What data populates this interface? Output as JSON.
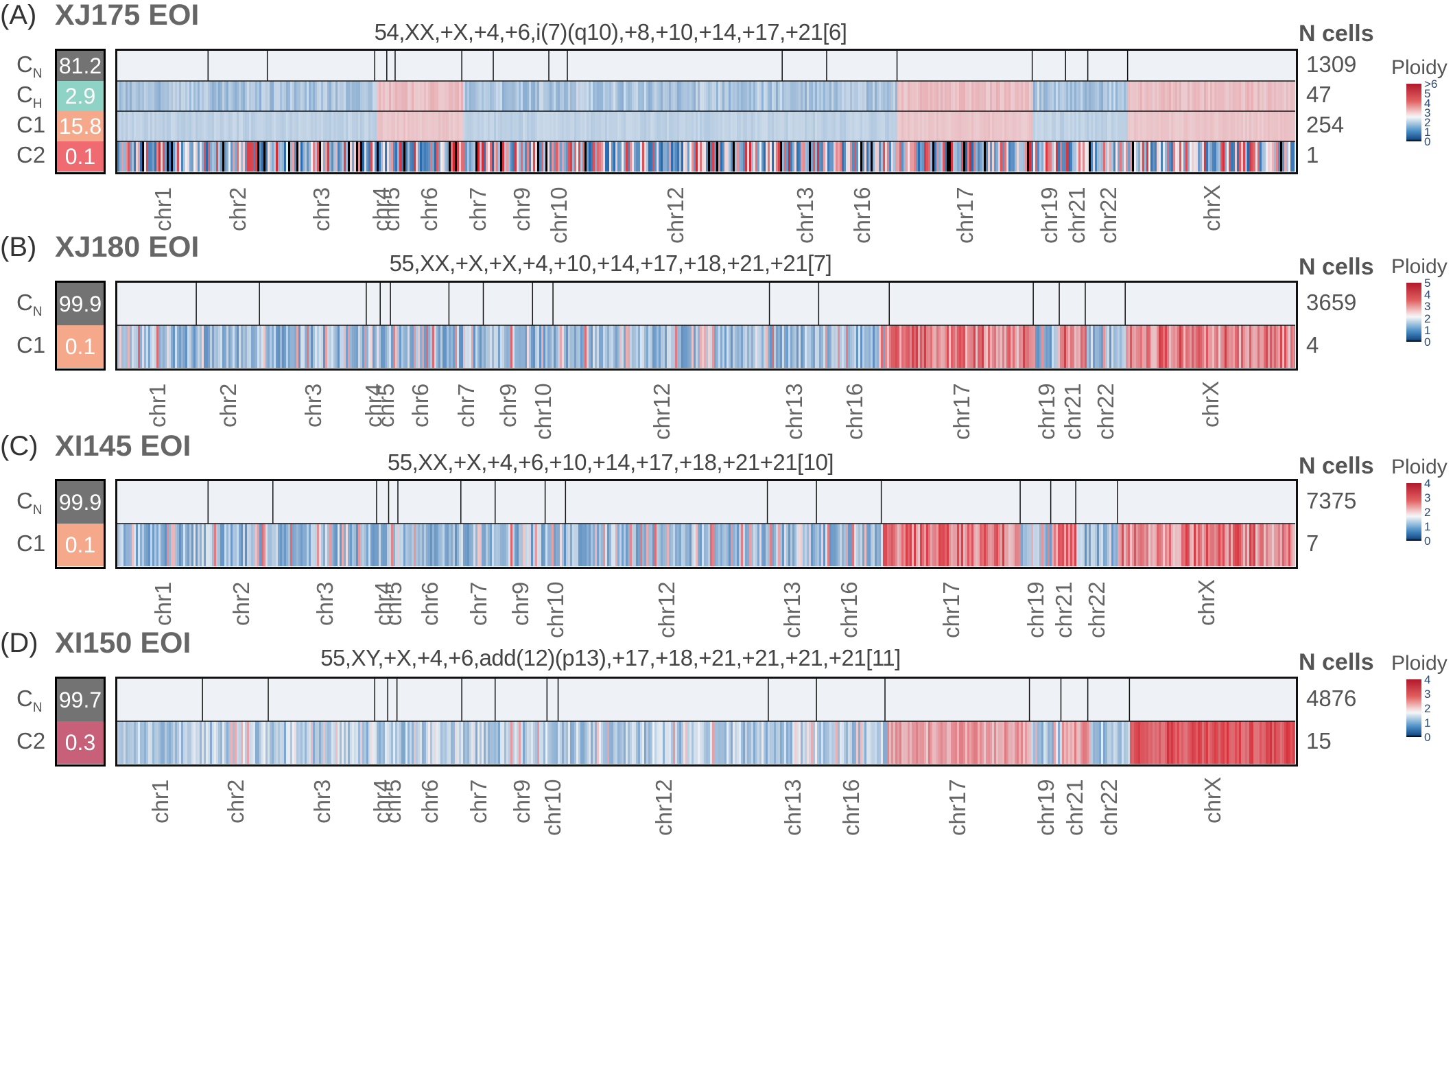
{
  "panels": [
    {
      "label": "(A)",
      "title": "XJ175 EOI",
      "karyotype": "54,XX,+X,+4,+6,i(7)(q10),+8,+10,+14,+17,+21[6]",
      "ncells_header": "N cells",
      "rows": [
        {
          "name": "C",
          "sub": "N",
          "pct": "81.2",
          "color": "#737373",
          "count": "1309",
          "profile": "normal"
        },
        {
          "name": "C",
          "sub": "H",
          "pct": "2.9",
          "color": "#8fd3c6",
          "count": "47",
          "profile": "h"
        },
        {
          "name": "C1",
          "sub": "",
          "pct": "15.8",
          "color": "#f6a98a",
          "count": "254",
          "profile": "c1"
        },
        {
          "name": "C2",
          "sub": "",
          "pct": "0.1",
          "color": "#f06a72",
          "count": "1",
          "profile": "noisy"
        }
      ],
      "chromosomes": [
        "chr1",
        "chr2",
        "chr3",
        "chr4",
        "chr5",
        "chr6",
        "chr7",
        "chr9",
        "chr10",
        "chr12",
        "chr13",
        "chr16",
        "chr17",
        "chr19",
        "chr21",
        "chr22",
        "chrX"
      ],
      "legend": {
        "title": "Ploidy",
        "ticks": [
          ">6",
          "5",
          "4",
          "3",
          "2",
          "1",
          "0"
        ]
      }
    },
    {
      "label": "(B)",
      "title": "XJ180 EOI",
      "karyotype": "55,XX,+X,+X,+4,+10,+14,+17,+18,+21,+21[7]",
      "ncells_header": "N cells",
      "rows": [
        {
          "name": "C",
          "sub": "N",
          "pct": "99.9",
          "color": "#737373",
          "count": "3659",
          "profile": "normal"
        },
        {
          "name": "C1",
          "sub": "",
          "pct": "0.1",
          "color": "#f6a98a",
          "count": "4",
          "profile": "mixed"
        }
      ],
      "chromosomes": [
        "chr1",
        "chr2",
        "chr3",
        "chr4",
        "chr5",
        "chr6",
        "chr7",
        "chr9",
        "chr10",
        "chr12",
        "chr13",
        "chr16",
        "chr17",
        "chr19",
        "chr21",
        "chr22",
        "chrX"
      ],
      "legend": {
        "title": "Ploidy",
        "ticks": [
          "5",
          "4",
          "3",
          "2",
          "1",
          "0"
        ]
      }
    },
    {
      "label": "(C)",
      "title": "XI145 EOI",
      "karyotype": "55,XX,+X,+4,+6,+10,+14,+17,+18,+21+21[10]",
      "ncells_header": "N cells",
      "rows": [
        {
          "name": "C",
          "sub": "N",
          "pct": "99.9",
          "color": "#737373",
          "count": "7375",
          "profile": "normal"
        },
        {
          "name": "C1",
          "sub": "",
          "pct": "0.1",
          "color": "#f6a98a",
          "count": "7",
          "profile": "mixed"
        }
      ],
      "chromosomes": [
        "chr1",
        "chr2",
        "chr3",
        "chr4",
        "chr5",
        "chr6",
        "chr7",
        "chr9",
        "chr10",
        "chr12",
        "chr13",
        "chr16",
        "chr17",
        "chr19",
        "chr21",
        "chr22",
        "chrX"
      ],
      "legend": {
        "title": "Ploidy",
        "ticks": [
          "4",
          "3",
          "2",
          "1",
          "0"
        ]
      }
    },
    {
      "label": "(D)",
      "title": "XI150 EOI",
      "karyotype": "55,XY,+X,+4,+6,add(12)(p13),+17,+18,+21,+21,+21,+21[11]",
      "ncells_header": "N cells",
      "rows": [
        {
          "name": "C",
          "sub": "N",
          "pct": "99.7",
          "color": "#737373",
          "count": "4876",
          "profile": "normal"
        },
        {
          "name": "C2",
          "sub": "",
          "pct": "0.3",
          "color": "#c8607a",
          "count": "15",
          "profile": "d"
        }
      ],
      "chromosomes": [
        "chr1",
        "chr2",
        "chr3",
        "chr4",
        "chr5",
        "chr6",
        "chr7",
        "chr9",
        "chr10",
        "chr12",
        "chr13",
        "chr16",
        "chr17",
        "chr19",
        "chr21",
        "chr22",
        "chrX"
      ],
      "legend": {
        "title": "Ploidy",
        "ticks": [
          "4",
          "3",
          "2",
          "1",
          "0"
        ]
      }
    }
  ],
  "colors": {
    "low": "#2166ac",
    "neutral": "#f0f3f6",
    "high": "#d6242e",
    "black": "#000000",
    "border": "#111111"
  }
}
